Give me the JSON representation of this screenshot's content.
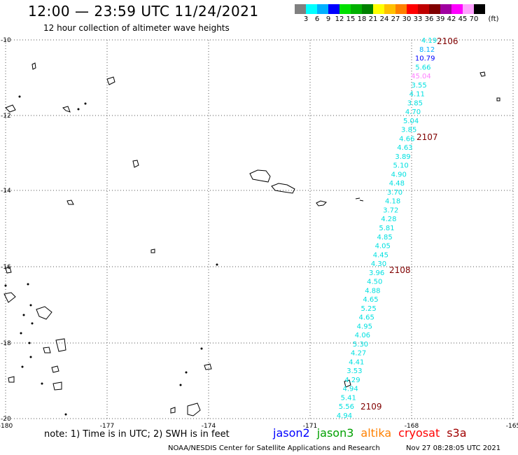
{
  "header": {
    "title": "12:00 — 23:59 UTC 11/24/2021",
    "subtitle": "12 hour collection of altimeter wave heights"
  },
  "colorbar": {
    "unit": "(ft)",
    "colors": [
      "#808080",
      "#00ffff",
      "#00b0ff",
      "#0000ff",
      "#00e000",
      "#00b000",
      "#008000",
      "#ffff00",
      "#ffc000",
      "#ff8000",
      "#ff0000",
      "#c00000",
      "#800000",
      "#a000a0",
      "#ff00ff",
      "#ffa0ff",
      "#000000"
    ],
    "labels": [
      "3",
      "6",
      "9",
      "12",
      "15",
      "18",
      "21",
      "24",
      "27",
      "30",
      "33",
      "36",
      "39",
      "42",
      "45",
      "70"
    ]
  },
  "axes": {
    "lon_ticks": [
      "-180",
      "-177",
      "-174",
      "-171",
      "-168",
      "-165"
    ],
    "lat_ticks": [
      "-10",
      "-12",
      "-14",
      "-16",
      "-18",
      "-20"
    ]
  },
  "track_times": [
    "2106",
    "2107",
    "2108",
    "2109"
  ],
  "track_points": [
    {
      "v": "4.19",
      "c": "#00e0e0"
    },
    {
      "v": "8.12",
      "c": "#00b0ff"
    },
    {
      "v": "10.79",
      "c": "#0000ff"
    },
    {
      "v": "5.66",
      "c": "#00e0e0"
    },
    {
      "v": "45.04",
      "c": "#ff80ff"
    },
    {
      "v": "3.55",
      "c": "#00e0e0"
    },
    {
      "v": "4.11",
      "c": "#00e0e0"
    },
    {
      "v": "3.85",
      "c": "#00e0e0"
    },
    {
      "v": "4.70",
      "c": "#00e0e0"
    },
    {
      "v": "5.04",
      "c": "#00e0e0"
    },
    {
      "v": "3.85",
      "c": "#00e0e0"
    },
    {
      "v": "4.66",
      "c": "#00e0e0"
    },
    {
      "v": "4.63",
      "c": "#00e0e0"
    },
    {
      "v": "3.89",
      "c": "#00e0e0"
    },
    {
      "v": "5.10",
      "c": "#00e0e0"
    },
    {
      "v": "4.90",
      "c": "#00e0e0"
    },
    {
      "v": "4.48",
      "c": "#00e0e0"
    },
    {
      "v": "3.70",
      "c": "#00e0e0"
    },
    {
      "v": "4.18",
      "c": "#00e0e0"
    },
    {
      "v": "3.72",
      "c": "#00e0e0"
    },
    {
      "v": "4.28",
      "c": "#00e0e0"
    },
    {
      "v": "5.81",
      "c": "#00e0e0"
    },
    {
      "v": "4.85",
      "c": "#00e0e0"
    },
    {
      "v": "4.05",
      "c": "#00e0e0"
    },
    {
      "v": "4.45",
      "c": "#00e0e0"
    },
    {
      "v": "4.30",
      "c": "#00e0e0"
    },
    {
      "v": "3.96",
      "c": "#00e0e0"
    },
    {
      "v": "4.50",
      "c": "#00e0e0"
    },
    {
      "v": "4.88",
      "c": "#00e0e0"
    },
    {
      "v": "4.65",
      "c": "#00e0e0"
    },
    {
      "v": "5.25",
      "c": "#00e0e0"
    },
    {
      "v": "4.65",
      "c": "#00e0e0"
    },
    {
      "v": "4.95",
      "c": "#00e0e0"
    },
    {
      "v": "4.06",
      "c": "#00e0e0"
    },
    {
      "v": "5.30",
      "c": "#00e0e0"
    },
    {
      "v": "4.27",
      "c": "#00e0e0"
    },
    {
      "v": "4.41",
      "c": "#00e0e0"
    },
    {
      "v": "3.53",
      "c": "#00e0e0"
    },
    {
      "v": "4.29",
      "c": "#00e0e0"
    },
    {
      "v": "4.94",
      "c": "#00e0e0"
    },
    {
      "v": "5.41",
      "c": "#00e0e0"
    },
    {
      "v": "5.56",
      "c": "#00e0e0"
    },
    {
      "v": "4.94",
      "c": "#00e0e0"
    }
  ],
  "note": "note:  1) Time is in UTC;  2) SWH is in feet",
  "satellites": [
    {
      "name": "jason2",
      "color": "#0000ff"
    },
    {
      "name": "jason3",
      "color": "#00a000"
    },
    {
      "name": "altika",
      "color": "#ff8000"
    },
    {
      "name": "cryosat",
      "color": "#ff0000"
    },
    {
      "name": "s3a",
      "color": "#a00000"
    }
  ],
  "footer": "NOAA/NESDIS Center for Satellite Applications and Research",
  "timestamp": "Nov 27 08:28:05 UTC 2021"
}
